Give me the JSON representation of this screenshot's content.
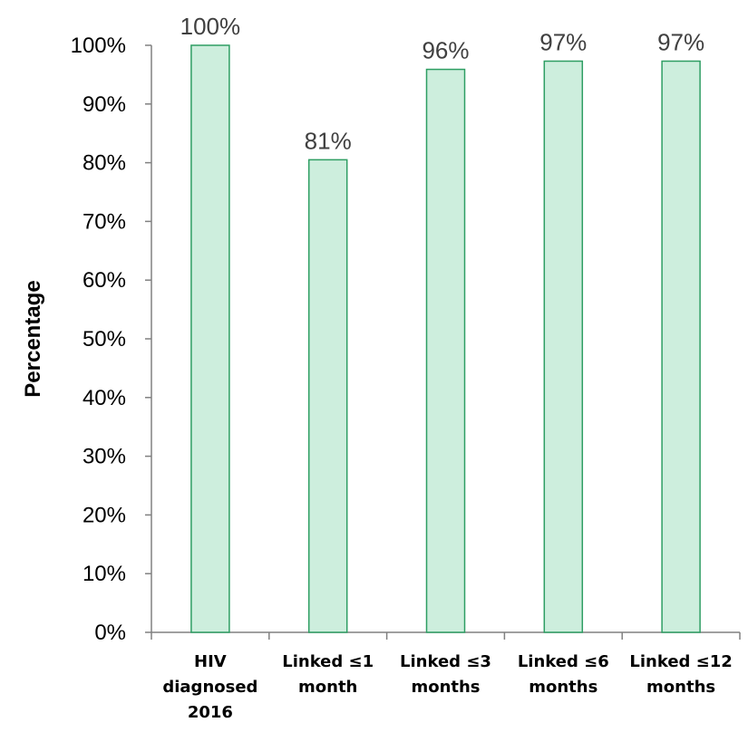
{
  "chart_data": {
    "type": "bar",
    "title": "",
    "xlabel": "",
    "ylabel": "Percentage",
    "ylim": [
      0,
      100
    ],
    "y_ticks": [
      "0%",
      "10%",
      "20%",
      "30%",
      "40%",
      "50%",
      "60%",
      "70%",
      "80%",
      "90%",
      "100%"
    ],
    "categories": [
      [
        "HIV",
        "diagnosed",
        "2016"
      ],
      [
        "Linked ≤1",
        "month"
      ],
      [
        "Linked ≤3",
        "months"
      ],
      [
        "Linked ≤6",
        "months"
      ],
      [
        "Linked ≤12",
        "months"
      ]
    ],
    "values": [
      100,
      80.5,
      95.9,
      97.3,
      97.3
    ],
    "data_labels": [
      "100%",
      "81%",
      "96%",
      "97%",
      "97%"
    ],
    "grid": false,
    "legend": "none",
    "colors": {
      "bar_fill": "#cdeedd",
      "bar_stroke": "#2e9e63",
      "axis": "#808080",
      "label": "#404040"
    }
  }
}
